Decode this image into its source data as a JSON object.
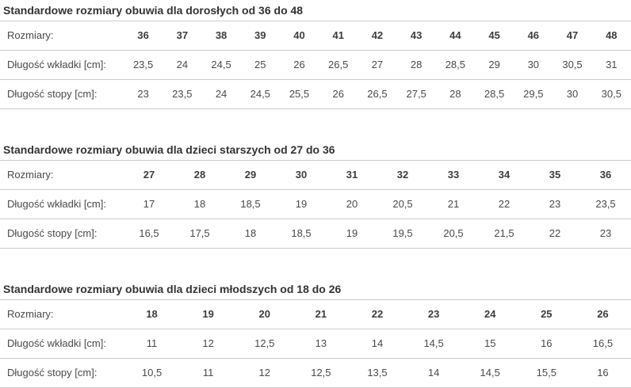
{
  "colors": {
    "background": "#ffffff",
    "border": "#cccccc",
    "title_text": "#333333",
    "body_text": "#4a4a4a",
    "header_value_text": "#3d3d3d"
  },
  "tables": [
    {
      "title": "Standardowe rozmiary obuwia dla dorosłych od 36 do 48",
      "rows": [
        {
          "label": "Rozmiary:",
          "header": true,
          "values": [
            "36",
            "37",
            "38",
            "39",
            "40",
            "41",
            "42",
            "43",
            "44",
            "45",
            "46",
            "47",
            "48"
          ]
        },
        {
          "label": "Długość wkładki [cm]:",
          "header": false,
          "values": [
            "23,5",
            "24",
            "24,5",
            "25",
            "26",
            "26,5",
            "27",
            "28",
            "28,5",
            "29",
            "30",
            "30,5",
            "31"
          ]
        },
        {
          "label": "Długość stopy [cm]:",
          "header": false,
          "values": [
            "23",
            "23,5",
            "24",
            "24,5",
            "25,5",
            "26",
            "26,5",
            "27,5",
            "28",
            "28,5",
            "29,5",
            "30",
            "30,5"
          ]
        }
      ]
    },
    {
      "title": "Standardowe rozmiary obuwia dla dzieci starszych od 27 do 36",
      "rows": [
        {
          "label": "Rozmiary:",
          "header": true,
          "values": [
            "27",
            "28",
            "29",
            "30",
            "31",
            "32",
            "33",
            "34",
            "35",
            "36"
          ]
        },
        {
          "label": "Długość wkładki [cm]:",
          "header": false,
          "values": [
            "17",
            "18",
            "18,5",
            "19",
            "20",
            "20,5",
            "21",
            "22",
            "23",
            "23,5"
          ]
        },
        {
          "label": "Długość stopy [cm]:",
          "header": false,
          "values": [
            "16,5",
            "17,5",
            "18",
            "18,5",
            "19",
            "19,5",
            "20,5",
            "21,5",
            "22",
            "23"
          ]
        }
      ]
    },
    {
      "title": "Standardowe rozmiary obuwia dla dzieci młodszych od 18 do 26",
      "rows": [
        {
          "label": "Rozmiary:",
          "header": true,
          "values": [
            "18",
            "19",
            "20",
            "21",
            "22",
            "23",
            "24",
            "25",
            "26"
          ]
        },
        {
          "label": "Długość wkładki [cm]:",
          "header": false,
          "values": [
            "11",
            "12",
            "12,5",
            "13",
            "14",
            "14,5",
            "15",
            "16",
            "16,5"
          ]
        },
        {
          "label": "Długość stopy [cm]:",
          "header": false,
          "values": [
            "10,5",
            "11",
            "12",
            "12,5",
            "13,5",
            "14",
            "14,5",
            "15,5",
            "16"
          ]
        }
      ]
    }
  ]
}
